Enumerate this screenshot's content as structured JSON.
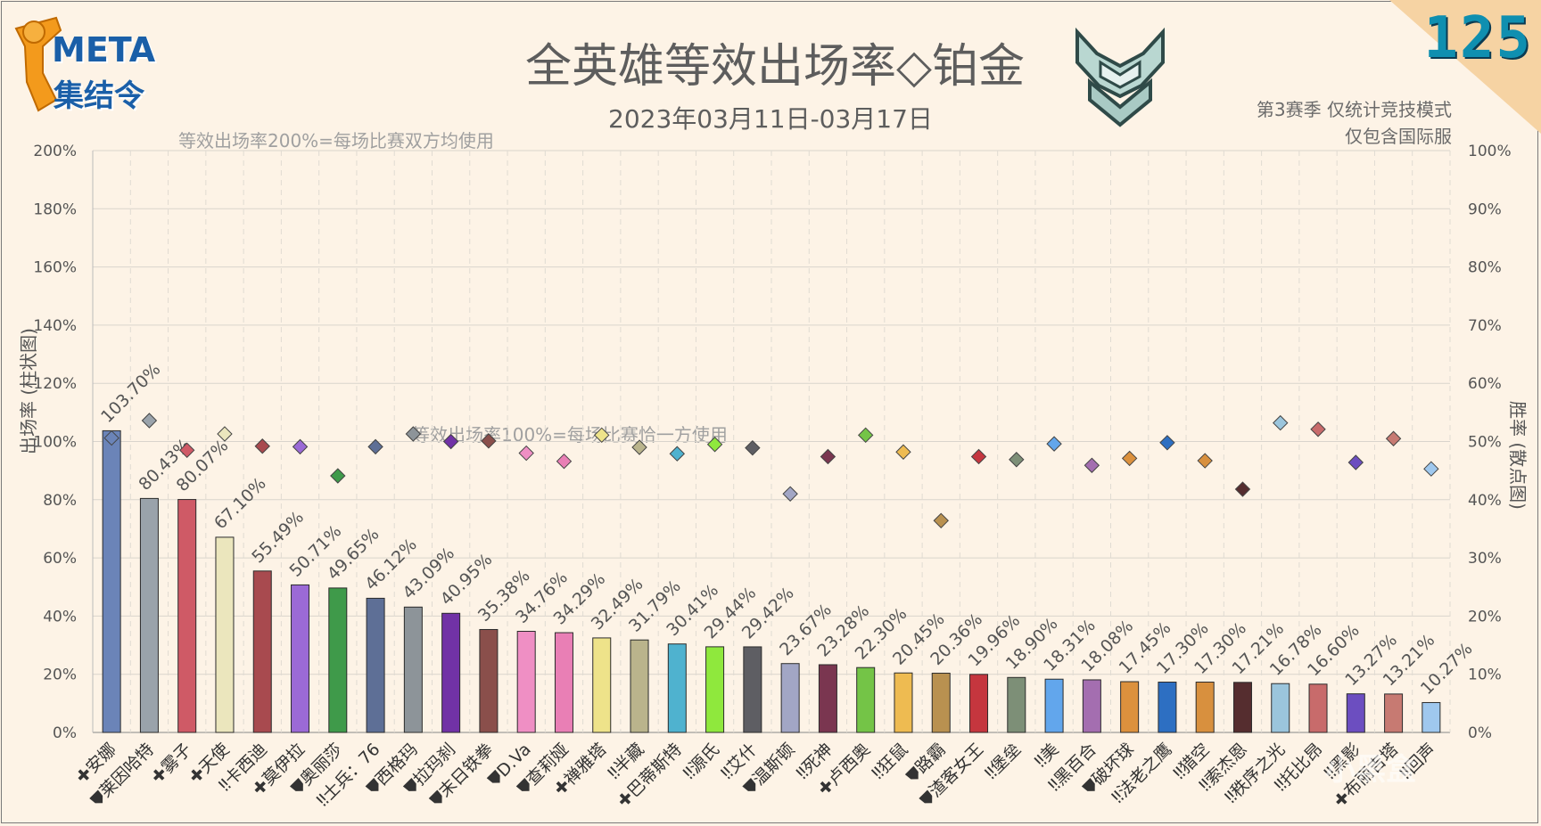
{
  "header": {
    "logo_line1": "META",
    "logo_line2": "集结令",
    "title": "全英雄等效出场率◇铂金",
    "subtitle": "2023年03月11日-03月17日",
    "season_line1": "第3赛季 仅统计竞技模式",
    "season_line2": "仅包含国际服",
    "issue_number": "125",
    "note_200": "等效出场率200%=每场比赛双方均使用",
    "note_100": "等效出场率100%=每场比赛恰一方使用",
    "watermark": "小黑盒"
  },
  "chart_data": {
    "type": "bar",
    "ylabel": "出场率 (柱状图)",
    "y2label": "胜率 (散点图)",
    "ylim": [
      0,
      200
    ],
    "y2lim": [
      0,
      100
    ],
    "yticks": [
      "0%",
      "20%",
      "40%",
      "60%",
      "80%",
      "100%",
      "120%",
      "140%",
      "160%",
      "180%",
      "200%"
    ],
    "y2ticks": [
      "0%",
      "10%",
      "20%",
      "30%",
      "40%",
      "50%",
      "60%",
      "70%",
      "80%",
      "90%",
      "100%"
    ],
    "grid": true,
    "categories": [
      "✚安娜",
      "⛊莱因哈特",
      "✚雾子",
      "✚天使",
      "‼卡西迪",
      "✚莫伊拉",
      "⛊奥丽莎",
      "‼士兵：76",
      "⛊西格玛",
      "⛊拉玛刹",
      "⛊末日铁拳",
      "⛊D.Va",
      "⛊查莉娅",
      "✚禅雅塔",
      "‼半藏",
      "✚巴蒂斯特",
      "‼源氏",
      "‼艾什",
      "⛊温斯顿",
      "‼死神",
      "✚卢西奥",
      "‼狂鼠",
      "⛊路霸",
      "⛊渣客女王",
      "‼堡垒",
      "‼美",
      "‼黑百合",
      "⛊破坏球",
      "‼法老之鹰",
      "‼猎空",
      "‼索杰恩",
      "‼秩序之光",
      "‼托比昂",
      "‼黑影",
      "✚布丽吉塔",
      "‼回声"
    ],
    "bar_labels": [
      "103.70%",
      "80.43%",
      "80.07%",
      "67.10%",
      "55.49%",
      "50.71%",
      "49.65%",
      "46.12%",
      "43.09%",
      "40.95%",
      "35.38%",
      "34.76%",
      "34.29%",
      "32.49%",
      "31.79%",
      "30.41%",
      "29.44%",
      "29.42%",
      "23.67%",
      "23.28%",
      "22.30%",
      "20.45%",
      "20.36%",
      "19.96%",
      "18.90%",
      "18.31%",
      "18.08%",
      "17.45%",
      "17.30%",
      "17.30%",
      "17.21%",
      "16.78%",
      "16.60%",
      "13.27%",
      "13.21%",
      "10.27%"
    ],
    "series": [
      {
        "name": "出场率",
        "values": [
          103.7,
          80.43,
          80.07,
          67.1,
          55.49,
          50.71,
          49.65,
          46.12,
          43.09,
          40.95,
          35.38,
          34.76,
          34.29,
          32.49,
          31.79,
          30.41,
          29.44,
          29.42,
          23.67,
          23.28,
          22.3,
          20.45,
          20.36,
          19.96,
          18.9,
          18.31,
          18.08,
          17.45,
          17.3,
          17.3,
          17.21,
          16.78,
          16.6,
          13.27,
          13.21,
          10.27
        ]
      },
      {
        "name": "胜率",
        "values": [
          50.6,
          53.6,
          48.5,
          51.3,
          49.2,
          49.1,
          44.1,
          49.1,
          51.3,
          50.0,
          50.1,
          48.0,
          46.6,
          51.1,
          49.0,
          47.9,
          49.5,
          48.9,
          41.0,
          47.4,
          51.1,
          48.2,
          36.4,
          47.4,
          46.9,
          49.6,
          45.9,
          47.1,
          49.8,
          46.7,
          41.8,
          53.2,
          52.1,
          46.4,
          50.5,
          45.3
        ]
      }
    ],
    "colors": [
      "#6b84b8",
      "#9aa3ab",
      "#cf5a66",
      "#ebe6bd",
      "#a84a4f",
      "#9b6ad6",
      "#3f9a4a",
      "#5e6f96",
      "#8d9499",
      "#7132a6",
      "#8a4f4b",
      "#ef8fc4",
      "#e97fb5",
      "#eee38a",
      "#bab48c",
      "#4fb2cf",
      "#8fe83d",
      "#5e5e63",
      "#a2a6c5",
      "#7a3650",
      "#74c447",
      "#eebb51",
      "#b99150",
      "#c5363e",
      "#7d8f77",
      "#62a6ec",
      "#a46eb0",
      "#dc913d",
      "#2d6fc2",
      "#d8903e",
      "#552d2f",
      "#9bc5dc",
      "#c86b6b",
      "#6c4ec0",
      "#c77a72",
      "#9fc8ee"
    ]
  }
}
